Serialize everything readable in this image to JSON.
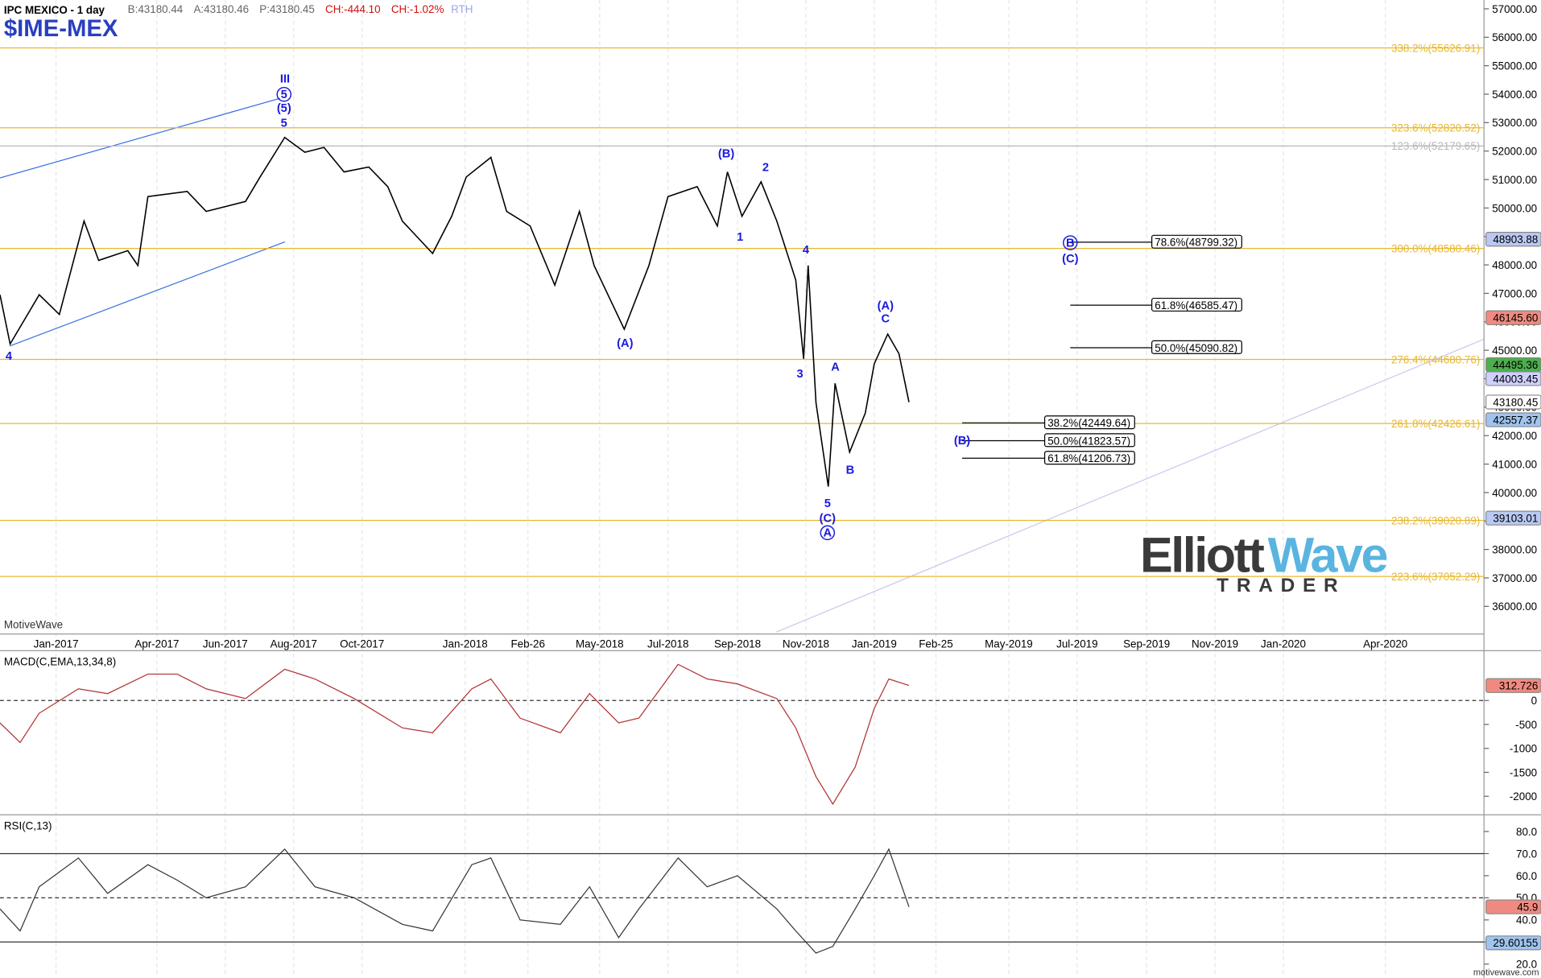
{
  "header": {
    "title": "IPC MEXICO - 1 day",
    "symbol": "$IME-MEX",
    "stats": [
      {
        "text": "B:43180.44",
        "color": "#666666"
      },
      {
        "text": "A:43180.46",
        "color": "#666666"
      },
      {
        "text": "P:43180.45",
        "color": "#666666"
      },
      {
        "text": "CH:-444.10",
        "color": "#d01010"
      },
      {
        "text": "CH:-1.02%",
        "color": "#d01010"
      },
      {
        "text": "RTH",
        "color": "#9aa8e8"
      }
    ]
  },
  "watermark": "MotiveWave",
  "footer": "motivewave.com",
  "logo": {
    "part1": "Elliott",
    "part2": "Wave",
    "tagline": "TRADER"
  },
  "chart_data": [
    {
      "type": "line",
      "color": "#000000",
      "grid": "x",
      "xlim": [
        "2016-11-12",
        "2020-06-28"
      ],
      "ylim": [
        35030,
        57310
      ],
      "xticks": [
        {
          "value": "2017-01",
          "label": "Jan-2017"
        },
        {
          "value": "2017-04",
          "label": "Apr-2017"
        },
        {
          "value": "2017-06",
          "label": "Jun-2017"
        },
        {
          "value": "2017-08",
          "label": "Aug-2017"
        },
        {
          "value": "2017-10",
          "label": "Oct-2017"
        },
        {
          "value": "2018-01",
          "label": "Jan-2018"
        },
        {
          "value": "2018-02-26",
          "label": "Feb-26"
        },
        {
          "value": "2018-05",
          "label": "May-2018"
        },
        {
          "value": "2018-07",
          "label": "Jul-2018"
        },
        {
          "value": "2018-09",
          "label": "Sep-2018"
        },
        {
          "value": "2018-11",
          "label": "Nov-2018"
        },
        {
          "value": "2019-01",
          "label": "Jan-2019"
        },
        {
          "value": "2019-02-25",
          "label": "Feb-25"
        },
        {
          "value": "2019-05",
          "label": "May-2019"
        },
        {
          "value": "2019-07",
          "label": "Jul-2019"
        },
        {
          "value": "2019-09",
          "label": "Sep-2019"
        },
        {
          "value": "2019-11",
          "label": "Nov-2019"
        },
        {
          "value": "2020-01",
          "label": "Jan-2020"
        },
        {
          "value": "2020-04",
          "label": "Apr-2020"
        }
      ],
      "yticks": [
        {
          "value": 36000,
          "label": "36000.00"
        },
        {
          "value": 37000,
          "label": "37000.00"
        },
        {
          "value": 38000,
          "label": "38000.00"
        },
        {
          "value": 39000,
          "label": "39000.00"
        },
        {
          "value": 40000,
          "label": "40000.00"
        },
        {
          "value": 41000,
          "label": "41000.00"
        },
        {
          "value": 42000,
          "label": "42000.00"
        },
        {
          "value": 43000,
          "label": "43000.00"
        },
        {
          "value": 44000,
          "label": "44000.00"
        },
        {
          "value": 45000,
          "label": "45000.00"
        },
        {
          "value": 46000,
          "label": "46000.00"
        },
        {
          "value": 47000,
          "label": "47000.00"
        },
        {
          "value": 48000,
          "label": "48000.00"
        },
        {
          "value": 49000,
          "label": "49000.00"
        },
        {
          "value": 50000,
          "label": "50000.00"
        },
        {
          "value": 51000,
          "label": "51000.00"
        },
        {
          "value": 52000,
          "label": "52000.00"
        },
        {
          "value": 53000,
          "label": "53000.00"
        },
        {
          "value": 54000,
          "label": "54000.00"
        },
        {
          "value": 55000,
          "label": "55000.00"
        },
        {
          "value": 56000,
          "label": "56000.00"
        },
        {
          "value": 57000,
          "label": "57000.00"
        }
      ],
      "x": [
        "2016-11-12",
        "2016-11-21",
        "2016-12-17",
        "2017-01-04",
        "2017-01-26",
        "2017-02-08",
        "2017-03-06",
        "2017-03-15",
        "2017-03-24",
        "2017-04-28",
        "2017-05-15",
        "2017-06-19",
        "2017-07-02",
        "2017-07-24",
        "2017-08-11",
        "2017-08-28",
        "2017-09-15",
        "2017-10-07",
        "2017-10-24",
        "2017-11-06",
        "2017-12-03",
        "2017-12-20",
        "2018-01-02",
        "2018-01-24",
        "2018-02-07",
        "2018-02-28",
        "2018-03-22",
        "2018-04-13",
        "2018-04-26",
        "2018-05-23",
        "2018-06-14",
        "2018-07-01",
        "2018-07-27",
        "2018-08-14",
        "2018-08-23",
        "2018-09-05",
        "2018-09-22",
        "2018-10-06",
        "2018-10-23",
        "2018-10-30",
        "2018-11-03",
        "2018-11-10",
        "2018-11-21",
        "2018-11-27",
        "2018-12-10",
        "2018-12-24",
        "2019-01-01",
        "2019-01-13",
        "2019-01-23",
        "2019-02-01"
      ],
      "values": [
        46950,
        45220,
        46950,
        46260,
        49540,
        48160,
        48500,
        47980,
        50400,
        50580,
        49880,
        50230,
        51090,
        52480,
        51960,
        52130,
        51270,
        51440,
        50750,
        49540,
        48400,
        49710,
        51090,
        51780,
        49880,
        49370,
        47290,
        49880,
        47980,
        45740,
        47980,
        50400,
        50750,
        49370,
        51270,
        49710,
        50920,
        49540,
        47470,
        44700,
        47980,
        43150,
        40210,
        43840,
        41420,
        42800,
        44530,
        45570,
        44880,
        43180
      ],
      "fib_levels": [
        {
          "value": 55626.91,
          "label": "338.2%(55626.91)",
          "color": "#e8b830"
        },
        {
          "value": 52820.52,
          "label": "323.6%(52820.52)",
          "color": "#e8b830"
        },
        {
          "value": 52179.65,
          "label": "123.6%(52179.65)",
          "color": "#b8b8b8"
        },
        {
          "value": 48580.46,
          "label": "300.0%(48580.46)",
          "color": "#e8b830"
        },
        {
          "value": 44680.76,
          "label": "276.4%(44680.76)",
          "color": "#e8b830"
        },
        {
          "value": 42426.61,
          "label": "261.8%(42426.61)",
          "color": "#e8b830"
        },
        {
          "value": 39020.89,
          "label": "238.2%(39020.89)",
          "color": "#e8b830"
        },
        {
          "value": 37052.29,
          "label": "223.6%(37052.29)",
          "color": "#e8b830"
        }
      ],
      "projections": [
        {
          "value": 48799.32,
          "label": "78.6%(48799.32)"
        },
        {
          "value": 46585.47,
          "label": "61.8%(46585.47)"
        },
        {
          "value": 45090.82,
          "label": "50.0%(45090.82)"
        },
        {
          "value": 42449.64,
          "label": "38.2%(42449.64)"
        },
        {
          "value": 41823.57,
          "label": "50.0%(41823.57)"
        },
        {
          "value": 41206.73,
          "label": "61.8%(41206.73)"
        }
      ],
      "markers": [
        {
          "value": 48903.88,
          "color": "#b9c9f2"
        },
        {
          "value": 46145.6,
          "label": "46145.60",
          "color": "#f08a80"
        },
        {
          "value": 44495.36,
          "color": "#4cae4c"
        },
        {
          "value": 44003.45,
          "color": "#cfd0ff"
        },
        {
          "value": 43180.45,
          "color": "#ffffff"
        },
        {
          "value": 42557.37,
          "color": "#9fc4ee"
        },
        {
          "value": 39103.01,
          "color": "#b9c9f2"
        }
      ],
      "wave_labels": [
        {
          "text": "III",
          "circled": false
        },
        {
          "text": "5",
          "circled": true
        },
        {
          "text": "(5)",
          "circled": false
        },
        {
          "text": "5",
          "circled": false
        },
        {
          "text": "4",
          "circled": false
        },
        {
          "text": "(A)",
          "circled": false
        },
        {
          "text": "(B)",
          "circled": false
        },
        {
          "text": "2",
          "circled": false
        },
        {
          "text": "1",
          "circled": false
        },
        {
          "text": "4",
          "circled": false
        },
        {
          "text": "3",
          "circled": false
        },
        {
          "text": "A",
          "circled": false
        },
        {
          "text": "5",
          "circled": false
        },
        {
          "text": "(C)",
          "circled": false
        },
        {
          "text": "A",
          "circled": true
        },
        {
          "text": "B",
          "circled": false
        },
        {
          "text": "(A)",
          "circled": false
        },
        {
          "text": "C",
          "circled": false
        },
        {
          "text": "B",
          "circled": true
        },
        {
          "text": "(C)",
          "circled": false
        },
        {
          "text": "(B)",
          "circled": false
        }
      ]
    },
    {
      "type": "line",
      "title": "MACD(C,EMA,13,34,8)",
      "color": "#b03030",
      "xlim": [
        "2016-11-12",
        "2020-06-28"
      ],
      "ylim": [
        -2367,
        1020
      ],
      "yticks": [
        -2000,
        -1500,
        -1000,
        -500,
        0
      ],
      "levels": [
        {
          "value": 0,
          "style": "dashed"
        }
      ],
      "x": [
        "2016-11-12",
        "2016-11-30",
        "2016-12-17",
        "2017-01-21",
        "2017-02-16",
        "2017-03-24",
        "2017-04-19",
        "2017-05-15",
        "2017-06-19",
        "2017-07-24",
        "2017-08-20",
        "2017-09-24",
        "2017-11-06",
        "2017-12-03",
        "2018-01-07",
        "2018-01-24",
        "2018-02-19",
        "2018-03-27",
        "2018-04-22",
        "2018-05-18",
        "2018-06-05",
        "2018-07-10",
        "2018-08-05",
        "2018-09-01",
        "2018-10-06",
        "2018-10-23",
        "2018-11-10",
        "2018-11-25",
        "2018-12-15",
        "2019-01-01",
        "2019-01-14",
        "2019-02-01"
      ],
      "values": [
        -469,
        -877,
        -265,
        245,
        143,
        551,
        551,
        245,
        41,
        653,
        449,
        41,
        -571,
        -673,
        245,
        449,
        -367,
        -673,
        143,
        -469,
        -367,
        755,
        449,
        347,
        41,
        -571,
        -1592,
        -2163,
        -1388,
        -163,
        449,
        313
      ],
      "markers": [
        {
          "value": 312.726,
          "color": "#f08a80"
        }
      ]
    },
    {
      "type": "line",
      "title": "RSI(C,13)",
      "color": "#333333",
      "xlim": [
        "2016-11-12",
        "2020-06-28"
      ],
      "ylim": [
        14.6,
        87.1
      ],
      "yticks": [
        {
          "value": 20,
          "label": "20.0"
        },
        {
          "value": 30,
          "label": "30.0"
        },
        {
          "value": 40,
          "label": "40.0"
        },
        {
          "value": 50,
          "label": "50.0"
        },
        {
          "value": 60,
          "label": "60.0"
        },
        {
          "value": 70,
          "label": "70.0"
        },
        {
          "value": 80,
          "label": "80.0"
        }
      ],
      "levels": [
        {
          "value": 70,
          "style": "solid"
        },
        {
          "value": 50,
          "style": "dashed"
        },
        {
          "value": 30,
          "style": "solid"
        }
      ],
      "x": [
        "2016-11-12",
        "2016-11-30",
        "2016-12-17",
        "2017-01-21",
        "2017-02-16",
        "2017-03-24",
        "2017-04-19",
        "2017-05-15",
        "2017-06-19",
        "2017-07-24",
        "2017-08-20",
        "2017-09-24",
        "2017-11-06",
        "2017-12-03",
        "2018-01-07",
        "2018-01-24",
        "2018-02-19",
        "2018-03-27",
        "2018-04-22",
        "2018-05-18",
        "2018-06-05",
        "2018-07-10",
        "2018-08-05",
        "2018-09-01",
        "2018-10-06",
        "2018-10-23",
        "2018-11-10",
        "2018-11-25",
        "2018-12-15",
        "2019-01-01",
        "2019-01-14",
        "2019-02-01"
      ],
      "values": [
        45,
        35,
        55,
        68,
        52,
        65,
        58,
        50,
        55,
        72,
        55,
        50,
        38,
        35,
        65,
        68,
        40,
        38,
        55,
        32,
        45,
        68,
        55,
        60,
        45,
        35,
        25,
        28,
        45,
        60,
        72,
        45.9
      ],
      "markers": [
        {
          "value": 45.9,
          "color": "#f08a80"
        },
        {
          "value": 29.60155,
          "color": "#9fc4ee"
        }
      ]
    }
  ]
}
